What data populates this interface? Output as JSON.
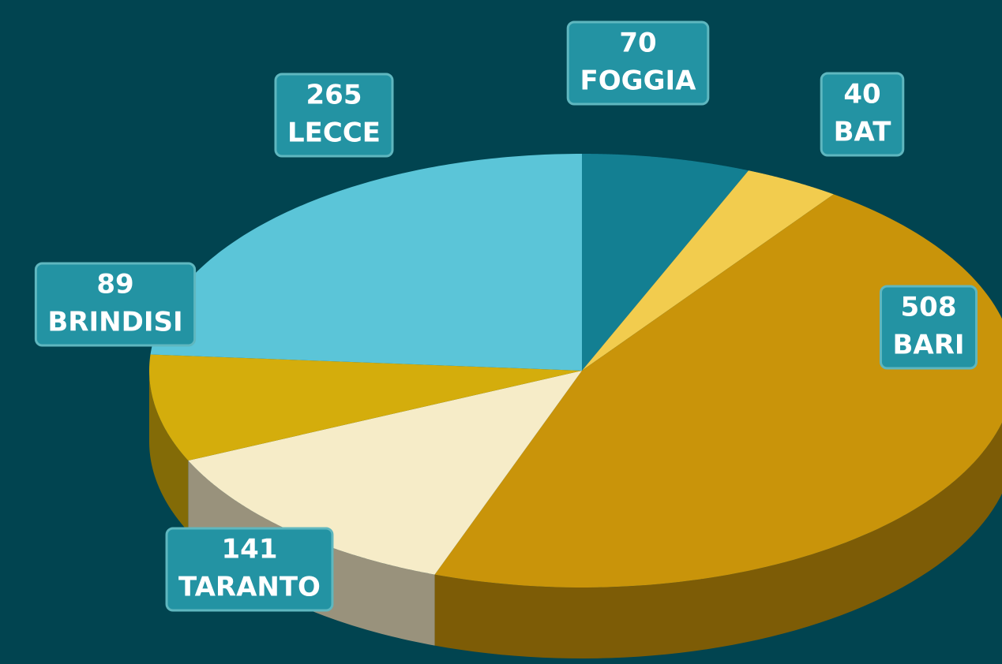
{
  "chart_data": {
    "type": "pie",
    "categories": [
      "FOGGIA",
      "BAT",
      "BARI",
      "TARANTO",
      "BRINDISI",
      "LECCE"
    ],
    "values": [
      70,
      40,
      508,
      141,
      89,
      265
    ],
    "colors": [
      "#137f92",
      "#f2cc4e",
      "#c9940a",
      "#f6ecc8",
      "#d4ad0c",
      "#5bc5d8"
    ]
  }
}
